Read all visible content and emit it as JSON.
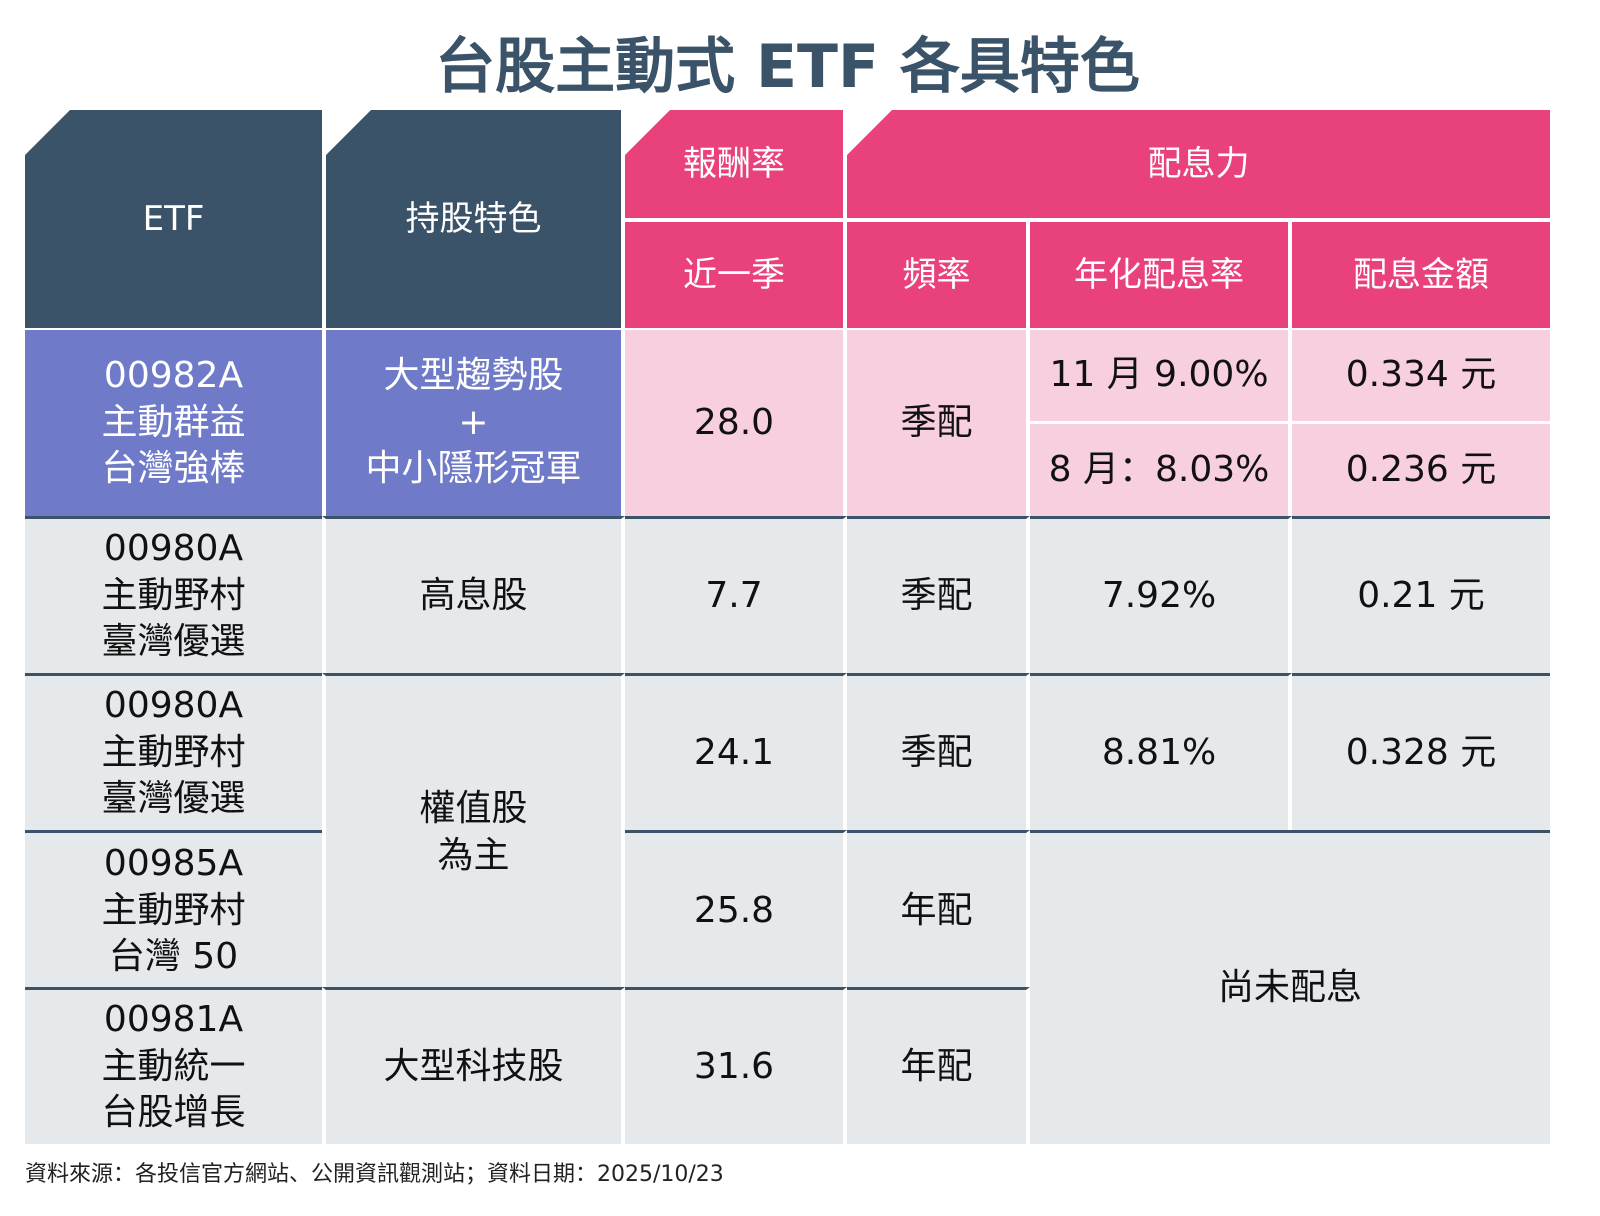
{
  "title": "台股主動式 ETF 各具特色",
  "headers": {
    "etf": "ETF",
    "feature": "持股特色",
    "return_group": "報酬率",
    "dividend_group": "配息力",
    "return_recent": "近一季",
    "frequency": "頻率",
    "annual_yield": "年化配息率",
    "dividend_amount": "配息金額"
  },
  "rows": [
    {
      "etf": [
        "00982A",
        "主動群益",
        "台灣強棒"
      ],
      "feature": [
        "大型趨勢股",
        "+",
        "中小隱形冠軍"
      ],
      "return": "28.0",
      "frequency": "季配",
      "yield": [
        "11 月 9.00%",
        "8 月：8.03%"
      ],
      "amount": [
        "0.334 元",
        "0.236 元"
      ]
    },
    {
      "etf": [
        "00980A",
        "主動野村",
        "臺灣優選"
      ],
      "feature": [
        "高息股"
      ],
      "return": "7.7",
      "frequency": "季配",
      "yield": [
        "7.92%"
      ],
      "amount": [
        "0.21 元"
      ]
    },
    {
      "etf": [
        "00980A",
        "主動野村",
        "臺灣優選"
      ],
      "feature": [
        "權值股",
        "為主"
      ],
      "return": "24.1",
      "frequency": "季配",
      "yield": [
        "8.81%"
      ],
      "amount": [
        "0.328 元"
      ]
    },
    {
      "etf": [
        "00985A",
        "主動野村",
        "台灣 50"
      ],
      "return": "25.8",
      "frequency": "年配"
    },
    {
      "etf": [
        "00981A",
        "主動統一",
        "台股增長"
      ],
      "feature": [
        "大型科技股"
      ],
      "return": "31.6",
      "frequency": "年配"
    }
  ],
  "no_dividend": "尚未配息",
  "source": "資料來源：各投信官方網站、公開資訊觀測站；資料日期：2025/10/23",
  "colors": {
    "header_dark": "#3a5368",
    "header_pink": "#e8417c",
    "highlight_purple": "#6f7bc9",
    "highlight_pink": "#f7cfe0",
    "row_gray": "#e6e9ec"
  }
}
